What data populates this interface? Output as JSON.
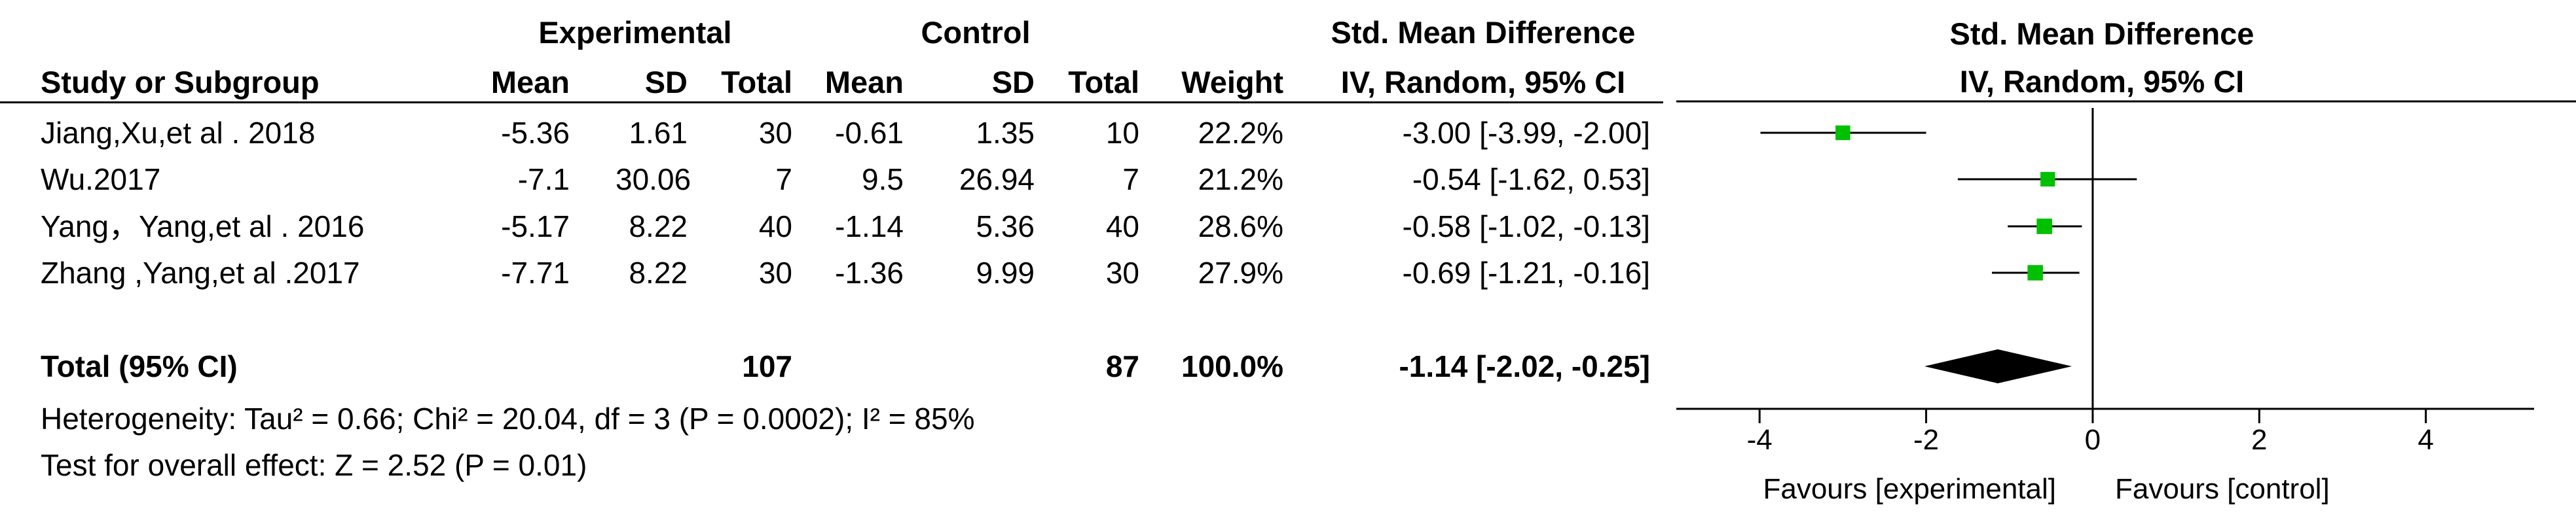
{
  "header": {
    "experimental_group": "Experimental",
    "control_group": "Control",
    "effect_measure": "Std. Mean Difference",
    "effect_method": "IV, Random, 95% CI",
    "plot_title": "Std. Mean Difference",
    "plot_method": "IV, Random, 95% CI",
    "columns": {
      "study": "Study or Subgroup",
      "exp_mean": "Mean",
      "exp_sd": "SD",
      "exp_total": "Total",
      "ctl_mean": "Mean",
      "ctl_sd": "SD",
      "ctl_total": "Total",
      "weight": "Weight"
    }
  },
  "studies": [
    {
      "name": "Jiang,Xu,et al . 2018",
      "exp_mean": "-5.36",
      "exp_sd": "1.61",
      "exp_total": "30",
      "ctl_mean": "-0.61",
      "ctl_sd": "1.35",
      "ctl_total": "10",
      "weight": "22.2%",
      "ci_text": "-3.00 [-3.99, -2.00]"
    },
    {
      "name": "Wu.2017",
      "exp_mean": "-7.1",
      "exp_sd": "30.06",
      "exp_total": "7",
      "ctl_mean": "9.5",
      "ctl_sd": "26.94",
      "ctl_total": "7",
      "weight": "21.2%",
      "ci_text": "-0.54 [-1.62, 0.53]"
    },
    {
      "name": "Yang，Yang,et al .  2016",
      "exp_mean": "-5.17",
      "exp_sd": "8.22",
      "exp_total": "40",
      "ctl_mean": "-1.14",
      "ctl_sd": "5.36",
      "ctl_total": "40",
      "weight": "28.6%",
      "ci_text": "-0.58 [-1.02, -0.13]"
    },
    {
      "name": "Zhang ,Yang,et al .2017",
      "exp_mean": "-7.71",
      "exp_sd": "8.22",
      "exp_total": "30",
      "ctl_mean": "-1.36",
      "ctl_sd": "9.99",
      "ctl_total": "30",
      "weight": "27.9%",
      "ci_text": "-0.69 [-1.21, -0.16]"
    }
  ],
  "total": {
    "label": "Total (95% CI)",
    "exp_total": "107",
    "ctl_total": "87",
    "weight": "100.0%",
    "ci_text": "-1.14 [-2.02, -0.25]"
  },
  "heterogeneity": "Heterogeneity: Tau² = 0.66; Chi² = 20.04, df = 3 (P = 0.0002); I² = 85%",
  "overall_effect": "Test for overall effect: Z = 2.52 (P = 0.01)",
  "chart_data": {
    "type": "forest",
    "xlim": [
      -5,
      5.3
    ],
    "ticks": [
      -4,
      -2,
      0,
      2,
      4
    ],
    "favours_left": "Favours [experimental]",
    "favours_right": "Favours [control]",
    "marker_color": "#00c000",
    "diamond_color": "#000000",
    "points": [
      {
        "estimate": -3.0,
        "lower": -3.99,
        "upper": -2.0,
        "weight": 22.2
      },
      {
        "estimate": -0.54,
        "lower": -1.62,
        "upper": 0.53,
        "weight": 21.2
      },
      {
        "estimate": -0.58,
        "lower": -1.02,
        "upper": -0.13,
        "weight": 28.6
      },
      {
        "estimate": -0.69,
        "lower": -1.21,
        "upper": -0.16,
        "weight": 27.9
      }
    ],
    "pooled": {
      "estimate": -1.14,
      "lower": -2.02,
      "upper": -0.25
    }
  }
}
